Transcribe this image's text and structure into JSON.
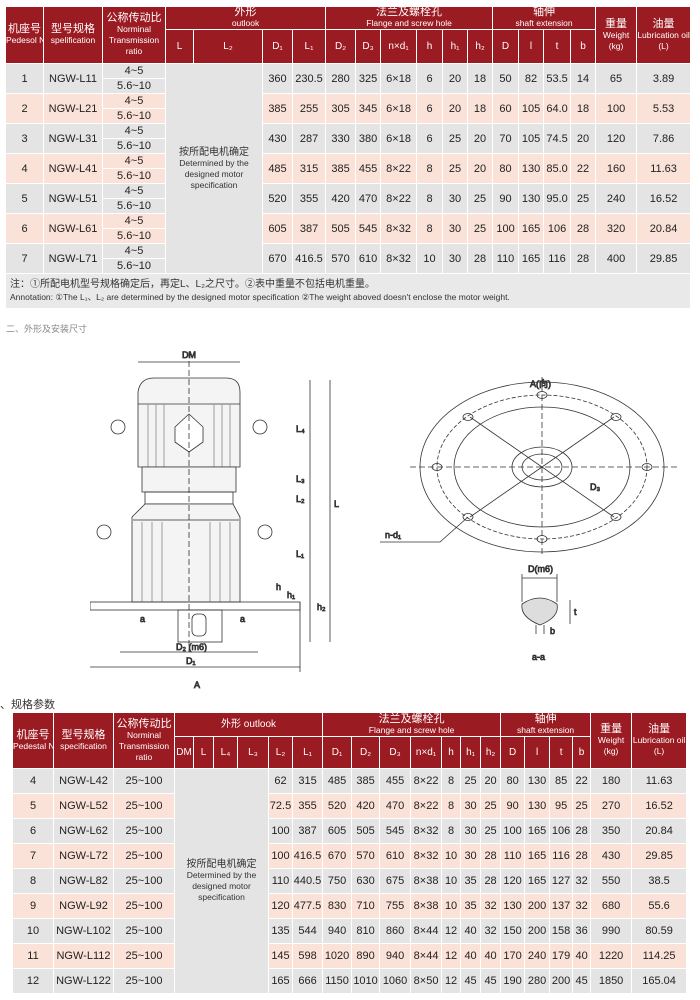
{
  "colors": {
    "header": "#9b1b22",
    "row_gray": "#e4e4e4",
    "row_pink": "#fbe2d8"
  },
  "table1": {
    "headers": {
      "no": {
        "zh": "机座号",
        "en": "Pedesol NO"
      },
      "spec": {
        "zh": "型号规格",
        "en": "spelification"
      },
      "ratio": {
        "zh": "公称传动比",
        "en": "Norminal Transmission ratio"
      },
      "outlook": {
        "zh": "外形",
        "en": "outlook"
      },
      "flange": {
        "zh": "法兰及螺栓孔",
        "en": "Flange and screw hole"
      },
      "shaft": {
        "zh": "轴伸",
        "en": "shaft extension"
      },
      "weight": {
        "zh": "重量",
        "en": "Weight (kg)"
      },
      "oil": {
        "zh": "油量",
        "en": "Lubrication oil (L)"
      },
      "sub": [
        "L",
        "L₂",
        "D₁",
        "L₁",
        "D₂",
        "D₃",
        "n×d₁",
        "h",
        "h₁",
        "h₂",
        "D",
        "l",
        "t",
        "b"
      ]
    },
    "merged": {
      "zh": "按所配电机确定",
      "en": "Determined by the designed motor specification"
    },
    "ratios": [
      "4~5",
      "5.6~10"
    ],
    "rows": [
      [
        "1",
        "NGW-L11",
        "360",
        "230.5",
        "280",
        "325",
        "6×18",
        "6",
        "20",
        "18",
        "50",
        "82",
        "53.5",
        "14",
        "65",
        "3.89"
      ],
      [
        "2",
        "NGW-L21",
        "385",
        "255",
        "305",
        "345",
        "6×18",
        "6",
        "20",
        "18",
        "60",
        "105",
        "64.0",
        "18",
        "100",
        "5.53"
      ],
      [
        "3",
        "NGW-L31",
        "430",
        "287",
        "330",
        "380",
        "6×18",
        "6",
        "25",
        "20",
        "70",
        "105",
        "74.5",
        "20",
        "120",
        "7.86"
      ],
      [
        "4",
        "NGW-L41",
        "485",
        "315",
        "385",
        "455",
        "8×22",
        "8",
        "25",
        "20",
        "80",
        "130",
        "85.0",
        "22",
        "160",
        "11.63"
      ],
      [
        "5",
        "NGW-L51",
        "520",
        "355",
        "420",
        "470",
        "8×22",
        "8",
        "30",
        "25",
        "90",
        "130",
        "95.0",
        "25",
        "240",
        "16.52"
      ],
      [
        "6",
        "NGW-L61",
        "605",
        "387",
        "505",
        "545",
        "8×32",
        "8",
        "30",
        "25",
        "100",
        "165",
        "106",
        "28",
        "320",
        "20.84"
      ],
      [
        "7",
        "NGW-L71",
        "670",
        "416.5",
        "570",
        "610",
        "8×32",
        "10",
        "30",
        "28",
        "110",
        "165",
        "116",
        "28",
        "400",
        "29.85"
      ]
    ],
    "note": {
      "zh": "注：①所配电机型号规格确定后，再定L、L₂之尺寸。②表中重量不包括电机重量。",
      "en": "Annotation: ①The L₁、L₂ are determined by the designed motor specification ②The weight aboved doesn't enclose the motor weight."
    }
  },
  "section1_caption": "二、外形及安装尺寸",
  "drawing": {
    "labels": {
      "dm": "DM",
      "l": "L",
      "l4": "L₄",
      "l3": "L₃",
      "l2": "L₂",
      "l1": "L₁",
      "h": "h",
      "h1": "h₁",
      "h2": "h₂",
      "d2": "D₂ (m6)",
      "d1": "D₁",
      "a_arrow": "A",
      "a_left": "a",
      "a_right": "a",
      "view_a": "A(向)",
      "d3": "D₃",
      "nd1": "n-d₁",
      "shaft_d": "D(m6)",
      "t": "t",
      "b": "b",
      "section": "a-a"
    }
  },
  "section2_caption": "、规格参数",
  "table2": {
    "headers": {
      "no": {
        "zh": "机座号",
        "en": "Pedestal NO"
      },
      "spec": {
        "zh": "型号规格",
        "en": "specification"
      },
      "ratio": {
        "zh": "公称传动比",
        "en": "Norminal Transmission ratio"
      },
      "outlook": {
        "zh": "外形",
        "en": "outlook"
      },
      "flange": {
        "zh": "法兰及螺栓孔",
        "en": "Flange and screw hole"
      },
      "shaft": {
        "zh": "轴伸",
        "en": "shaft extension"
      },
      "weight": {
        "zh": "重量",
        "en": "Weight (kg)"
      },
      "oil": {
        "zh": "油量",
        "en": "Lubrication oil (L)"
      },
      "sub": [
        "DM",
        "L",
        "L₄",
        "L₃",
        "L₂",
        "L₁",
        "D₁",
        "D₂",
        "D₃",
        "n×d₁",
        "h",
        "h₁",
        "h₂",
        "D",
        "l",
        "t",
        "b"
      ]
    },
    "merged": {
      "zh": "按所配电机确定",
      "en": "Determined by the designed motor specification"
    },
    "rows": [
      [
        "4",
        "NGW-L42",
        "25~100",
        "62",
        "315",
        "485",
        "385",
        "455",
        "8×22",
        "8",
        "25",
        "20",
        "80",
        "130",
        "85",
        "22",
        "180",
        "11.63"
      ],
      [
        "5",
        "NGW-L52",
        "25~100",
        "72.5",
        "355",
        "520",
        "420",
        "470",
        "8×22",
        "8",
        "30",
        "25",
        "90",
        "130",
        "95",
        "25",
        "270",
        "16.52"
      ],
      [
        "6",
        "NGW-L62",
        "25~100",
        "100",
        "387",
        "605",
        "505",
        "545",
        "8×32",
        "8",
        "30",
        "25",
        "100",
        "165",
        "106",
        "28",
        "350",
        "20.84"
      ],
      [
        "7",
        "NGW-L72",
        "25~100",
        "100",
        "416.5",
        "670",
        "570",
        "610",
        "8×32",
        "10",
        "30",
        "28",
        "110",
        "165",
        "116",
        "28",
        "430",
        "29.85"
      ],
      [
        "8",
        "NGW-L82",
        "25~100",
        "110",
        "440.5",
        "750",
        "630",
        "675",
        "8×38",
        "10",
        "35",
        "28",
        "120",
        "165",
        "127",
        "32",
        "550",
        "38.5"
      ],
      [
        "9",
        "NGW-L92",
        "25~100",
        "120",
        "477.5",
        "830",
        "710",
        "755",
        "8×38",
        "10",
        "35",
        "32",
        "130",
        "200",
        "137",
        "32",
        "680",
        "55.6"
      ],
      [
        "10",
        "NGW-L102",
        "25~100",
        "135",
        "544",
        "940",
        "810",
        "860",
        "8×44",
        "12",
        "40",
        "32",
        "150",
        "200",
        "158",
        "36",
        "990",
        "80.59"
      ],
      [
        "11",
        "NGW-L112",
        "25~100",
        "145",
        "598",
        "1020",
        "890",
        "940",
        "8×44",
        "12",
        "40",
        "40",
        "170",
        "240",
        "179",
        "40",
        "1220",
        "114.25"
      ],
      [
        "12",
        "NGW-L122",
        "25~100",
        "165",
        "666",
        "1150",
        "1010",
        "1060",
        "8×50",
        "12",
        "45",
        "45",
        "190",
        "280",
        "200",
        "45",
        "1850",
        "165.04"
      ]
    ]
  }
}
